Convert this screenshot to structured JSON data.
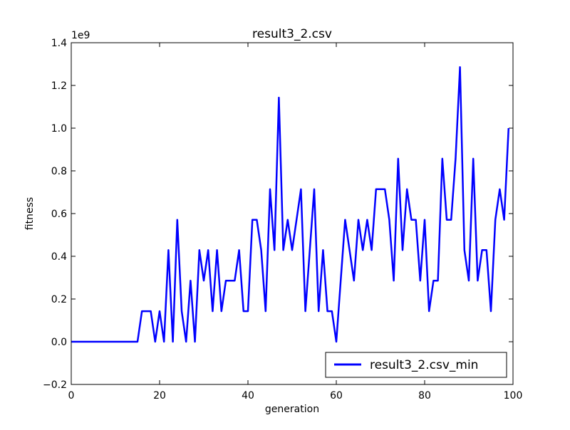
{
  "chart_data": {
    "type": "line",
    "title": "result3_2.csv",
    "xlabel": "generation",
    "ylabel": "fitness",
    "y_scale_label": "1e9",
    "y_multiplier": 1000000000.0,
    "xlim": [
      0,
      100
    ],
    "ylim": [
      -0.2,
      1.4
    ],
    "x_ticks": [
      0,
      20,
      40,
      60,
      80,
      100
    ],
    "x_tick_labels": [
      "0",
      "20",
      "40",
      "60",
      "80",
      "100"
    ],
    "y_ticks": [
      -0.2,
      0.0,
      0.2,
      0.4,
      0.6,
      0.8,
      1.0,
      1.2,
      1.4
    ],
    "y_tick_labels": [
      "−0.2",
      "0.0",
      "0.2",
      "0.4",
      "0.6",
      "0.8",
      "1.0",
      "1.2",
      "1.4"
    ],
    "grid": false,
    "legend_position": "bottom-right",
    "series": [
      {
        "name": "result3_2.csv_min",
        "color": "#0000ff",
        "x": [
          0,
          1,
          2,
          3,
          4,
          5,
          6,
          7,
          8,
          9,
          10,
          11,
          12,
          13,
          14,
          15,
          16,
          17,
          18,
          19,
          20,
          21,
          22,
          23,
          24,
          25,
          26,
          27,
          28,
          29,
          30,
          31,
          32,
          33,
          34,
          35,
          36,
          37,
          38,
          39,
          40,
          41,
          42,
          43,
          44,
          45,
          46,
          47,
          48,
          49,
          50,
          51,
          52,
          53,
          54,
          55,
          56,
          57,
          58,
          59,
          60,
          61,
          62,
          63,
          64,
          65,
          66,
          67,
          68,
          69,
          70,
          71,
          72,
          73,
          74,
          75,
          76,
          77,
          78,
          79,
          80,
          81,
          82,
          83,
          84,
          85,
          86,
          87,
          88,
          89,
          90,
          91,
          92,
          93,
          94,
          95,
          96,
          97,
          98,
          99
        ],
        "values": [
          0,
          0,
          0,
          0,
          0,
          0,
          0,
          0,
          0,
          0,
          0,
          0,
          0,
          0,
          0,
          0,
          0.143,
          0.143,
          0.143,
          0,
          0.143,
          0,
          0.429,
          0,
          0.571,
          0.143,
          0,
          0.286,
          0,
          0.429,
          0.286,
          0.429,
          0.143,
          0.429,
          0.143,
          0.286,
          0.286,
          0.286,
          0.429,
          0.143,
          0.143,
          0.571,
          0.571,
          0.429,
          0.143,
          0.714,
          0.429,
          1.143,
          0.429,
          0.571,
          0.429,
          0.571,
          0.714,
          0.143,
          0.429,
          0.714,
          0.143,
          0.429,
          0.143,
          0.143,
          0,
          0.286,
          0.571,
          0.429,
          0.286,
          0.571,
          0.429,
          0.571,
          0.429,
          0.714,
          0.714,
          0.714,
          0.571,
          0.286,
          0.857,
          0.429,
          0.714,
          0.571,
          0.571,
          0.286,
          0.571,
          0.143,
          0.286,
          0.286,
          0.857,
          0.571,
          0.571,
          0.857,
          1.286,
          0.429,
          0.286,
          0.857,
          0.286,
          0.429,
          0.429,
          0.143,
          0.571,
          0.714,
          0.571,
          1.0
        ]
      }
    ]
  }
}
